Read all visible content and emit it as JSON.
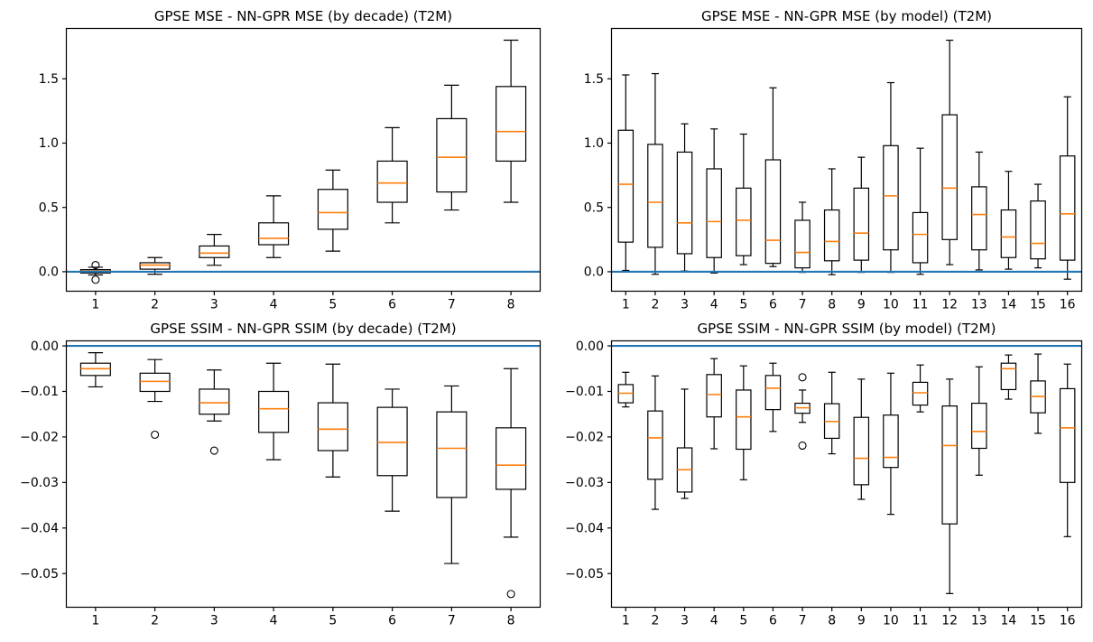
{
  "figure": {
    "background": "#ffffff",
    "colors": {
      "box": "#000000",
      "median": "#ff7f0e",
      "zero_line": "#1f77b4",
      "text": "#000000"
    }
  },
  "chart_data": [
    {
      "type": "boxplot",
      "title": "GPSE MSE - NN-GPR MSE (by decade) (T2M)",
      "xlabel": "",
      "ylabel": "",
      "legend": "none",
      "grid": false,
      "zero_line_y": 0,
      "categories": [
        "1",
        "2",
        "3",
        "4",
        "5",
        "6",
        "7",
        "8"
      ],
      "ytick_values": [
        0.0,
        0.5,
        1.0,
        1.5
      ],
      "ytick_labels": [
        "0.0",
        "0.5",
        "1.0",
        "1.5"
      ],
      "ylim": [
        -0.155,
        1.895
      ],
      "boxes": [
        {
          "whislo": -0.025,
          "q1": -0.01,
          "med": 0.004,
          "q3": 0.016,
          "whishi": 0.035,
          "fliers": [
            0.052,
            -0.062
          ]
        },
        {
          "whislo": -0.02,
          "q1": 0.02,
          "med": 0.052,
          "q3": 0.07,
          "whishi": 0.11,
          "fliers": []
        },
        {
          "whislo": 0.05,
          "q1": 0.11,
          "med": 0.145,
          "q3": 0.2,
          "whishi": 0.29,
          "fliers": []
        },
        {
          "whislo": 0.11,
          "q1": 0.21,
          "med": 0.26,
          "q3": 0.38,
          "whishi": 0.59,
          "fliers": []
        },
        {
          "whislo": 0.16,
          "q1": 0.33,
          "med": 0.46,
          "q3": 0.64,
          "whishi": 0.79,
          "fliers": []
        },
        {
          "whislo": 0.38,
          "q1": 0.54,
          "med": 0.69,
          "q3": 0.86,
          "whishi": 1.12,
          "fliers": []
        },
        {
          "whislo": 0.48,
          "q1": 0.62,
          "med": 0.89,
          "q3": 1.19,
          "whishi": 1.45,
          "fliers": []
        },
        {
          "whislo": 0.54,
          "q1": 0.86,
          "med": 1.09,
          "q3": 1.44,
          "whishi": 1.8,
          "fliers": []
        }
      ]
    },
    {
      "type": "boxplot",
      "title": "GPSE MSE - NN-GPR MSE (by model) (T2M)",
      "xlabel": "",
      "ylabel": "",
      "legend": "none",
      "grid": false,
      "zero_line_y": 0,
      "categories": [
        "1",
        "2",
        "3",
        "4",
        "5",
        "6",
        "7",
        "8",
        "9",
        "10",
        "11",
        "12",
        "13",
        "14",
        "15",
        "16"
      ],
      "ytick_values": [
        0.0,
        0.5,
        1.0,
        1.5
      ],
      "ytick_labels": [
        "0.0",
        "0.5",
        "1.0",
        "1.5"
      ],
      "ylim": [
        -0.155,
        1.895
      ],
      "boxes": [
        {
          "whislo": 0.01,
          "q1": 0.23,
          "med": 0.68,
          "q3": 1.1,
          "whishi": 1.53,
          "fliers": []
        },
        {
          "whislo": -0.02,
          "q1": 0.19,
          "med": 0.54,
          "q3": 0.99,
          "whishi": 1.54,
          "fliers": []
        },
        {
          "whislo": 0.005,
          "q1": 0.14,
          "med": 0.38,
          "q3": 0.93,
          "whishi": 1.15,
          "fliers": []
        },
        {
          "whislo": -0.01,
          "q1": 0.11,
          "med": 0.39,
          "q3": 0.8,
          "whishi": 1.11,
          "fliers": []
        },
        {
          "whislo": 0.055,
          "q1": 0.125,
          "med": 0.4,
          "q3": 0.65,
          "whishi": 1.07,
          "fliers": []
        },
        {
          "whislo": 0.04,
          "q1": 0.065,
          "med": 0.245,
          "q3": 0.87,
          "whishi": 1.43,
          "fliers": []
        },
        {
          "whislo": -0.005,
          "q1": 0.03,
          "med": 0.15,
          "q3": 0.4,
          "whishi": 0.54,
          "fliers": []
        },
        {
          "whislo": -0.023,
          "q1": 0.085,
          "med": 0.235,
          "q3": 0.48,
          "whishi": 0.8,
          "fliers": []
        },
        {
          "whislo": -0.005,
          "q1": 0.09,
          "med": 0.3,
          "q3": 0.65,
          "whishi": 0.89,
          "fliers": []
        },
        {
          "whislo": -0.005,
          "q1": 0.17,
          "med": 0.59,
          "q3": 0.98,
          "whishi": 1.47,
          "fliers": []
        },
        {
          "whislo": -0.02,
          "q1": 0.07,
          "med": 0.29,
          "q3": 0.46,
          "whishi": 0.96,
          "fliers": []
        },
        {
          "whislo": 0.055,
          "q1": 0.25,
          "med": 0.65,
          "q3": 1.22,
          "whishi": 1.8,
          "fliers": []
        },
        {
          "whislo": 0.014,
          "q1": 0.17,
          "med": 0.445,
          "q3": 0.66,
          "whishi": 0.93,
          "fliers": []
        },
        {
          "whislo": 0.02,
          "q1": 0.11,
          "med": 0.27,
          "q3": 0.48,
          "whishi": 0.78,
          "fliers": []
        },
        {
          "whislo": 0.03,
          "q1": 0.1,
          "med": 0.22,
          "q3": 0.55,
          "whishi": 0.68,
          "fliers": []
        },
        {
          "whislo": -0.058,
          "q1": 0.09,
          "med": 0.45,
          "q3": 0.9,
          "whishi": 1.36,
          "fliers": []
        }
      ]
    },
    {
      "type": "boxplot",
      "title": "GPSE SSIM - NN-GPR SSIM (by decade) (T2M)",
      "xlabel": "",
      "ylabel": "",
      "legend": "none",
      "grid": false,
      "zero_line_y": 0,
      "categories": [
        "1",
        "2",
        "3",
        "4",
        "5",
        "6",
        "7",
        "8"
      ],
      "ytick_values": [
        0.0,
        -0.01,
        -0.02,
        -0.03,
        -0.04,
        -0.05
      ],
      "ytick_labels": [
        "0.00",
        "−0.01",
        "−0.02",
        "−0.03",
        "−0.04",
        "−0.05"
      ],
      "ylim": [
        -0.0575,
        0.0012
      ],
      "boxes": [
        {
          "whislo": -0.009,
          "q1": -0.0065,
          "med": -0.005,
          "q3": -0.0038,
          "whishi": -0.0015,
          "fliers": []
        },
        {
          "whislo": -0.0122,
          "q1": -0.01,
          "med": -0.0078,
          "q3": -0.006,
          "whishi": -0.003,
          "fliers": [
            -0.0195
          ]
        },
        {
          "whislo": -0.0165,
          "q1": -0.015,
          "med": -0.0125,
          "q3": -0.0095,
          "whishi": -0.0053,
          "fliers": [
            -0.023
          ]
        },
        {
          "whislo": -0.025,
          "q1": -0.019,
          "med": -0.0138,
          "q3": -0.01,
          "whishi": -0.0038,
          "fliers": []
        },
        {
          "whislo": -0.0288,
          "q1": -0.023,
          "med": -0.0183,
          "q3": -0.0125,
          "whishi": -0.004,
          "fliers": []
        },
        {
          "whislo": -0.0363,
          "q1": -0.0285,
          "med": -0.0212,
          "q3": -0.0135,
          "whishi": -0.0095,
          "fliers": []
        },
        {
          "whislo": -0.0478,
          "q1": -0.0333,
          "med": -0.0225,
          "q3": -0.0145,
          "whishi": -0.0088,
          "fliers": []
        },
        {
          "whislo": -0.042,
          "q1": -0.0315,
          "med": -0.0262,
          "q3": -0.018,
          "whishi": -0.005,
          "fliers": [
            -0.0545
          ]
        }
      ]
    },
    {
      "type": "boxplot",
      "title": "GPSE SSIM - NN-GPR SSIM (by model) (T2M)",
      "xlabel": "",
      "ylabel": "",
      "legend": "none",
      "grid": false,
      "zero_line_y": 0,
      "categories": [
        "1",
        "2",
        "3",
        "4",
        "5",
        "6",
        "7",
        "8",
        "9",
        "10",
        "11",
        "12",
        "13",
        "14",
        "15",
        "16"
      ],
      "ytick_values": [
        0.0,
        -0.01,
        -0.02,
        -0.03,
        -0.04,
        -0.05
      ],
      "ytick_labels": [
        "0.00",
        "−0.01",
        "−0.02",
        "−0.03",
        "−0.04",
        "−0.05"
      ],
      "ylim": [
        -0.0575,
        0.0012
      ],
      "boxes": [
        {
          "whislo": -0.0134,
          "q1": -0.0125,
          "med": -0.0104,
          "q3": -0.0085,
          "whishi": -0.0058,
          "fliers": []
        },
        {
          "whislo": -0.0359,
          "q1": -0.0293,
          "med": -0.0202,
          "q3": -0.0143,
          "whishi": -0.0066,
          "fliers": []
        },
        {
          "whislo": -0.0335,
          "q1": -0.0321,
          "med": -0.0272,
          "q3": -0.0224,
          "whishi": -0.0095,
          "fliers": []
        },
        {
          "whislo": -0.0226,
          "q1": -0.0156,
          "med": -0.0107,
          "q3": -0.0063,
          "whishi": -0.0028,
          "fliers": []
        },
        {
          "whislo": -0.0294,
          "q1": -0.0227,
          "med": -0.0156,
          "q3": -0.0097,
          "whishi": -0.0044,
          "fliers": []
        },
        {
          "whislo": -0.0188,
          "q1": -0.014,
          "med": -0.0093,
          "q3": -0.0065,
          "whishi": -0.0038,
          "fliers": []
        },
        {
          "whislo": -0.0168,
          "q1": -0.0148,
          "med": -0.0136,
          "q3": -0.0126,
          "whishi": -0.0097,
          "fliers": [
            -0.0069,
            -0.0219
          ]
        },
        {
          "whislo": -0.0237,
          "q1": -0.0203,
          "med": -0.0166,
          "q3": -0.0127,
          "whishi": -0.0058,
          "fliers": []
        },
        {
          "whislo": -0.0337,
          "q1": -0.0305,
          "med": -0.0247,
          "q3": -0.0157,
          "whishi": -0.0073,
          "fliers": []
        },
        {
          "whislo": -0.037,
          "q1": -0.0267,
          "med": -0.0245,
          "q3": -0.0152,
          "whishi": -0.006,
          "fliers": []
        },
        {
          "whislo": -0.0145,
          "q1": -0.013,
          "med": -0.0103,
          "q3": -0.008,
          "whishi": -0.0042,
          "fliers": []
        },
        {
          "whislo": -0.0544,
          "q1": -0.0391,
          "med": -0.0219,
          "q3": -0.0132,
          "whishi": -0.0073,
          "fliers": []
        },
        {
          "whislo": -0.0284,
          "q1": -0.0225,
          "med": -0.0188,
          "q3": -0.0126,
          "whishi": -0.0046,
          "fliers": []
        },
        {
          "whislo": -0.0117,
          "q1": -0.0096,
          "med": -0.005,
          "q3": -0.0038,
          "whishi": -0.002,
          "fliers": []
        },
        {
          "whislo": -0.0192,
          "q1": -0.0147,
          "med": -0.0111,
          "q3": -0.0077,
          "whishi": -0.0018,
          "fliers": []
        },
        {
          "whislo": -0.0419,
          "q1": -0.03,
          "med": -0.018,
          "q3": -0.0094,
          "whishi": -0.004,
          "fliers": []
        }
      ]
    }
  ]
}
